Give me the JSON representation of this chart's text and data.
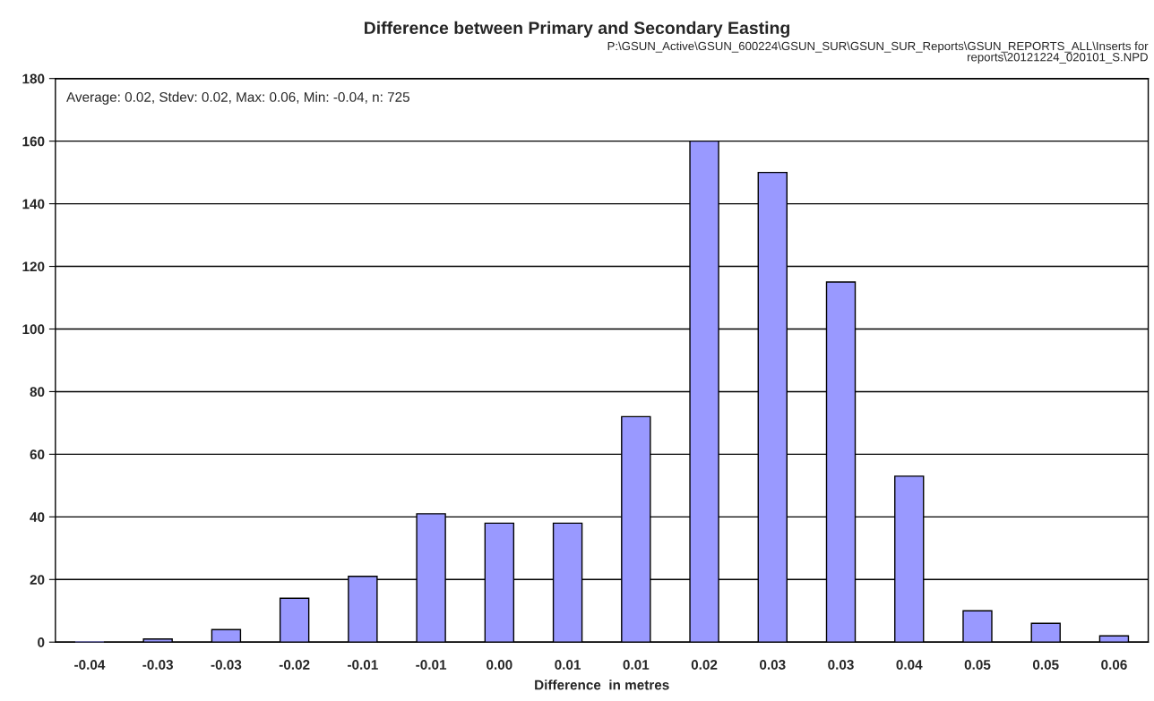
{
  "chart_data": {
    "type": "bar",
    "title": "Difference between Primary and Secondary Easting",
    "subtitle": "P:\\GSUN_Active\\GSUN_600224\\GSUN_SUR\\GSUN_SUR_Reports\\GSUN_REPORTS_ALL\\Inserts for\nreports\\20121224_020101_S.NPD",
    "xlabel": "Difference  in metres",
    "annotations": [
      "Average: 0.02, Stdev: 0.02, Max: 0.06, Min: -0.04, n: 725"
    ],
    "categories": [
      "-0.04",
      "-0.03",
      "-0.03",
      "-0.02",
      "-0.01",
      "-0.01",
      "0.00",
      "0.01",
      "0.01",
      "0.02",
      "0.03",
      "0.03",
      "0.04",
      "0.05",
      "0.05",
      "0.06"
    ],
    "values": [
      0,
      1,
      4,
      14,
      21,
      41,
      38,
      38,
      72,
      160,
      150,
      115,
      53,
      10,
      6,
      2
    ],
    "color": "#9999ff",
    "ylim": [
      0,
      180
    ],
    "yticks": [
      0,
      20,
      40,
      60,
      80,
      100,
      120,
      140,
      160,
      180
    ],
    "grid": "y",
    "legend": false
  }
}
